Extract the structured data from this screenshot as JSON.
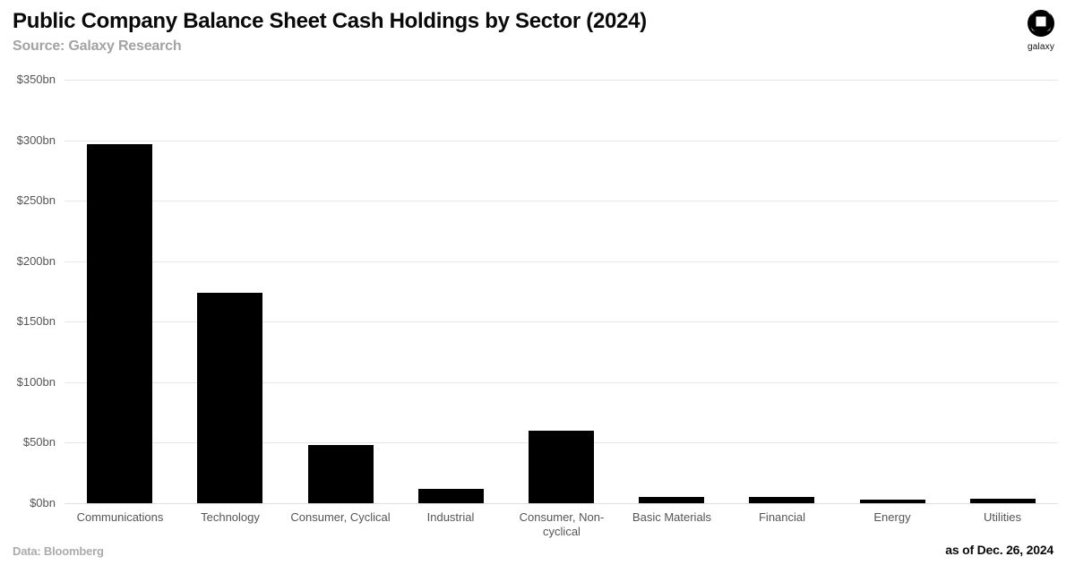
{
  "header": {
    "title": "Public Company Balance Sheet Cash Holdings by Sector (2024)",
    "source": "Source: Galaxy Research",
    "logo_text": "galaxy"
  },
  "footer": {
    "data_note": "Data: Bloomberg",
    "as_of": "as of Dec. 26, 2024"
  },
  "chart_data": {
    "type": "bar",
    "title": "Public Company Balance Sheet Cash Holdings by Sector (2024)",
    "categories": [
      "Communications",
      "Technology",
      "Consumer, Cyclical",
      "Industrial",
      "Consumer, Non-cyclical",
      "Basic Materials",
      "Financial",
      "Energy",
      "Utilities"
    ],
    "values": [
      297,
      174,
      48,
      12,
      60,
      5,
      5,
      3,
      4
    ],
    "unit": "$bn",
    "xlabel": "",
    "ylabel": "",
    "ylim": [
      0,
      350
    ],
    "ytick_step": 50,
    "yticks": [
      {
        "value": 0,
        "label": "$0bn"
      },
      {
        "value": 50,
        "label": "$50bn"
      },
      {
        "value": 100,
        "label": "$100bn"
      },
      {
        "value": 150,
        "label": "$150bn"
      },
      {
        "value": 200,
        "label": "$200bn"
      },
      {
        "value": 250,
        "label": "$250bn"
      },
      {
        "value": 300,
        "label": "$300bn"
      },
      {
        "value": 350,
        "label": "$350bn"
      }
    ],
    "grid": true,
    "legend": "none",
    "colors": {
      "bar": "#000000",
      "background": "#ffffff",
      "gridline": "#e7e7e7",
      "tick_label": "#555555",
      "title": "#0a0a0a",
      "subtitle": "#a3a3a3"
    }
  }
}
